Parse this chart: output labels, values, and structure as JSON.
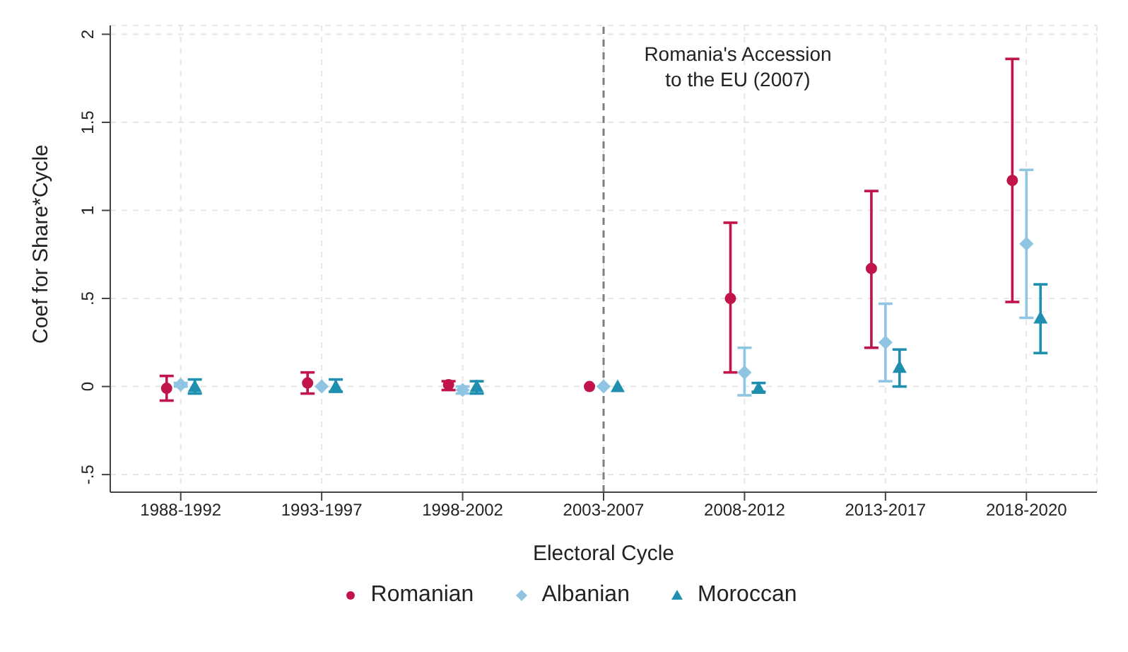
{
  "chart_data": {
    "type": "scatter",
    "xlabel": "Electoral Cycle",
    "ylabel": "Coef for Share*Cycle",
    "categories": [
      "1988-1992",
      "1993-1997",
      "1998-2002",
      "2003-2007",
      "2008-2012",
      "2013-2017",
      "2018-2020"
    ],
    "series": [
      {
        "name": "Romanian",
        "color": "#c0144a",
        "marker": "circle",
        "values": [
          -0.01,
          0.02,
          0.01,
          0,
          0.5,
          0.67,
          1.17
        ],
        "errors": [
          [
            -0.08,
            0.06
          ],
          [
            -0.04,
            0.08
          ],
          [
            -0.02,
            0.03
          ],
          null,
          [
            0.08,
            0.93
          ],
          [
            0.22,
            1.11
          ],
          [
            0.48,
            1.86
          ]
        ]
      },
      {
        "name": "Albanian",
        "color": "#8fc4e2",
        "marker": "diamond",
        "values": [
          0.01,
          0,
          -0.02,
          0,
          0.08,
          0.25,
          0.81
        ],
        "errors": [
          [
            0,
            0.02
          ],
          null,
          [
            -0.04,
            0
          ],
          null,
          [
            -0.05,
            0.22
          ],
          [
            0.03,
            0.47
          ],
          [
            0.39,
            1.23
          ]
        ]
      },
      {
        "name": "Moroccan",
        "color": "#1f8fb0",
        "marker": "triangle",
        "values": [
          0,
          0,
          0,
          0,
          -0.01,
          0.11,
          0.39
        ],
        "errors": [
          [
            -0.04,
            0.04
          ],
          [
            -0.03,
            0.04
          ],
          [
            -0.04,
            0.03
          ],
          null,
          [
            -0.03,
            0.02
          ],
          [
            0,
            0.21
          ],
          [
            0.19,
            0.58
          ]
        ]
      }
    ],
    "ylim": [
      -0.6,
      2.05
    ],
    "yticks": [
      {
        "value": -0.5,
        "label": "-.5"
      },
      0,
      {
        "value": 0.5,
        "label": ".5"
      },
      1,
      {
        "value": 1.5,
        "label": "1.5"
      },
      2
    ],
    "grid": true,
    "legend": "bottom",
    "ref_lines": [
      {
        "axis": "x",
        "value": "2003-2007",
        "label": "Romania's Accession\nto the EU (2007)",
        "line_style": "dashed",
        "color": "#7f7f7f"
      }
    ]
  }
}
